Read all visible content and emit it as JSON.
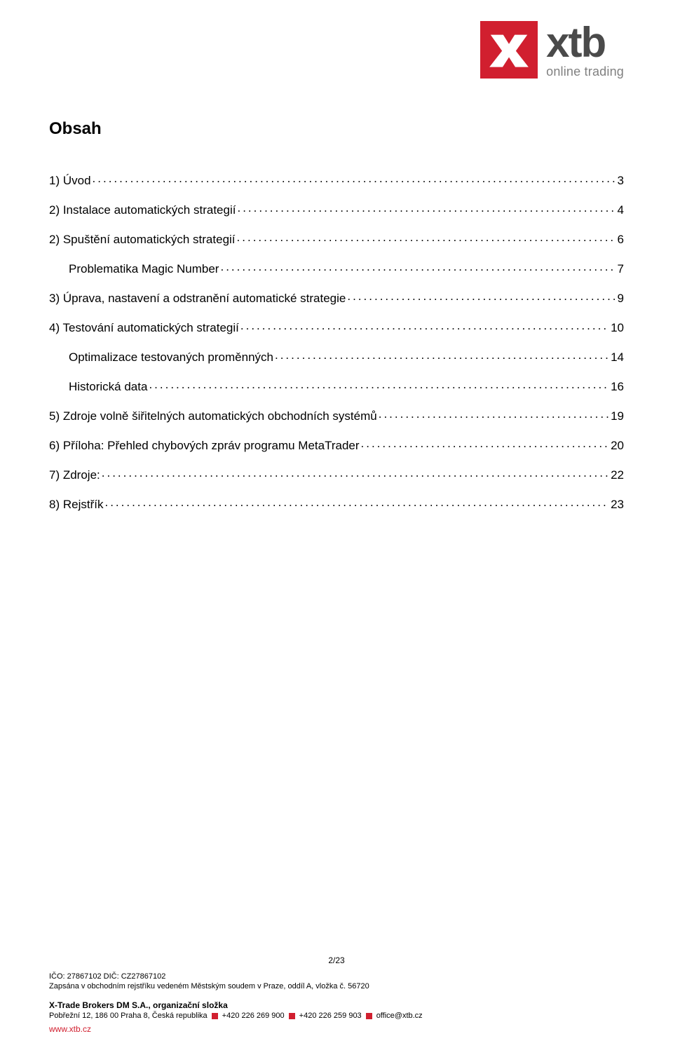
{
  "brand": {
    "logo_primary_color": "#d11f2f",
    "logo_text": "xtb",
    "logo_sub": "online trading",
    "logo_text_color": "#4a4a4a",
    "logo_sub_color": "#808080"
  },
  "heading": "Obsah",
  "toc": [
    {
      "label": "1) Úvod",
      "page": "3",
      "indent": false
    },
    {
      "label": "2) Instalace automatických strategií",
      "page": "4",
      "indent": false
    },
    {
      "label": "2) Spuštění automatických strategií",
      "page": "6",
      "indent": false
    },
    {
      "label": "Problematika Magic Number",
      "page": "7",
      "indent": true
    },
    {
      "label": "3) Úprava, nastavení a odstranění automatické strategie",
      "page": "9",
      "indent": false
    },
    {
      "label": "4) Testování automatických strategií",
      "page": "10",
      "indent": false
    },
    {
      "label": "Optimalizace testovaných proměnných",
      "page": "14",
      "indent": true
    },
    {
      "label": "Historická data",
      "page": "16",
      "indent": true
    },
    {
      "label": "5) Zdroje volně šiřitelných automatických obchodních systémů",
      "page": "19",
      "indent": false
    },
    {
      "label": "6) Příloha: Přehled chybových zpráv programu MetaTrader",
      "page": "20",
      "indent": false
    },
    {
      "label": "7) Zdroje:",
      "page": "22",
      "indent": false
    },
    {
      "label": "8) Rejstřík",
      "page": "23",
      "indent": false
    }
  ],
  "footer": {
    "page_indicator": "2/23",
    "ico_line": "IČO: 27867102 DIČ: CZ27867102",
    "register_line": "Zapsána v obchodním rejstříku vedeném Městským soudem v Praze, oddíl A, vložka č. 56720",
    "company": "X-Trade Brokers DM S.A., organizační složka",
    "address": "Pobřežní 12, 186 00 Praha 8, Česká republika",
    "phone1": "+420 226 269 900",
    "phone2": "+420 226 259 903",
    "email": "office@xtb.cz",
    "web": "www.xtb.cz",
    "bullet_color": "#d11f2f"
  }
}
